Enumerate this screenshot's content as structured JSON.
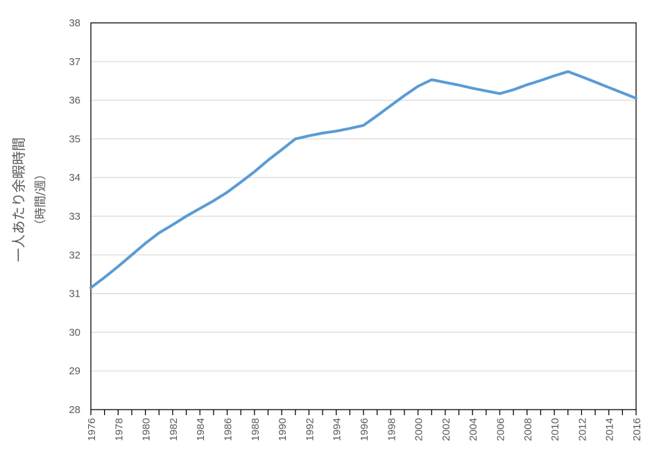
{
  "chart_data": {
    "type": "line",
    "title": "",
    "xlabel": "",
    "ylabel_line1": "一人あたり余暇時間",
    "ylabel_line2": "（時間/週）",
    "ylim": [
      28,
      38
    ],
    "xlim": [
      1976,
      2016
    ],
    "y_ticks": [
      28,
      29,
      30,
      31,
      32,
      33,
      34,
      35,
      36,
      37,
      38
    ],
    "x_tick_labels": [
      1976,
      1978,
      1980,
      1982,
      1984,
      1986,
      1988,
      1990,
      1992,
      1994,
      1996,
      1998,
      2000,
      2002,
      2004,
      2006,
      2008,
      2010,
      2012,
      2014,
      2016
    ],
    "grid": true,
    "line_color": "#5b9bd5",
    "series": [
      {
        "x": [
          1976,
          1977,
          1978,
          1979,
          1980,
          1981,
          1982,
          1983,
          1984,
          1985,
          1986,
          1987,
          1988,
          1989,
          1990,
          1991,
          1992,
          1993,
          1994,
          1995,
          1996,
          1997,
          1998,
          1999,
          2000,
          2001,
          2002,
          2003,
          2004,
          2005,
          2006,
          2007,
          2008,
          2009,
          2010,
          2011,
          2012,
          2013,
          2014,
          2015,
          2016
        ],
        "values": [
          31.15,
          31.42,
          31.7,
          32.0,
          32.3,
          32.57,
          32.78,
          33.0,
          33.2,
          33.4,
          33.62,
          33.88,
          34.15,
          34.45,
          34.72,
          35.0,
          35.08,
          35.15,
          35.2,
          35.27,
          35.35,
          35.6,
          35.86,
          36.12,
          36.36,
          36.53,
          36.46,
          36.39,
          36.31,
          36.24,
          36.17,
          36.27,
          36.4,
          36.51,
          36.63,
          36.74,
          36.61,
          36.47,
          36.33,
          36.19,
          36.05
        ]
      }
    ]
  }
}
